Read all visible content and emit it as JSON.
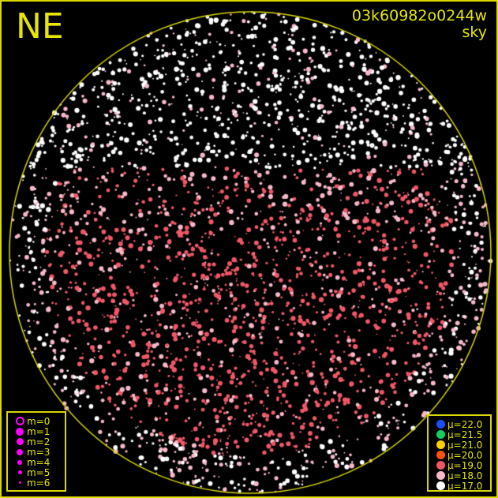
{
  "header": {
    "direction": "NE",
    "camera_id": "03k60982o0244w",
    "image_type": "sky"
  },
  "colors": {
    "horizon_circle": "#d8d800",
    "text": "#e6e600",
    "marker": "#ff00ff"
  },
  "magnitude_legend": [
    {
      "label": "m=0",
      "hollow": true
    },
    {
      "label": "m=1"
    },
    {
      "label": "m=2"
    },
    {
      "label": "m=3"
    },
    {
      "label": "m=4"
    },
    {
      "label": "m=5"
    },
    {
      "label": "m=6"
    }
  ],
  "sky_brightness_legend": [
    {
      "label": "μ=22.0",
      "color": "#1a4fff"
    },
    {
      "label": "μ=21.5",
      "color": "#10d060"
    },
    {
      "label": "μ=21.0",
      "color": "#ffd000"
    },
    {
      "label": "μ=20.0",
      "color": "#ff5010"
    },
    {
      "label": "μ=19.0",
      "color": "#f05868"
    },
    {
      "label": "μ=18.0",
      "color": "#f8b8c8"
    },
    {
      "label": "μ=17.0",
      "color": "#ffffff"
    }
  ]
}
